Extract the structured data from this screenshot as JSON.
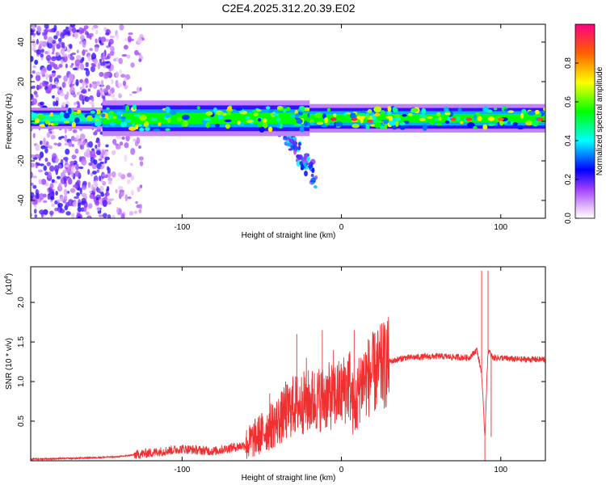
{
  "page": {
    "title": "C2E4.2025.312.20.39.E02"
  },
  "colors": {
    "snr_line": "#ee3030",
    "axis": "#000000",
    "background": "#ffffff"
  },
  "chart_data": [
    {
      "type": "heatmap",
      "title": "C2E4.2025.312.20.39.E02",
      "xlabel": "Height of straight line (km)",
      "ylabel": "Frequency (Hz)",
      "xlim": [
        -195,
        128
      ],
      "ylim": [
        -49,
        49
      ],
      "x_ticks": [
        -100,
        0,
        100
      ],
      "x_tick_labels": [
        "-100",
        "0",
        "100"
      ],
      "y_ticks": [
        -40,
        -20,
        0,
        20,
        40
      ],
      "y_tick_labels": [
        "-40",
        "-20",
        "0",
        "20",
        "40"
      ],
      "colorbar": {
        "label": "Normalized spectral amplitude",
        "range": [
          0,
          1
        ],
        "ticks": [
          0.0,
          0.2,
          0.4,
          0.6,
          0.8
        ],
        "tick_labels": [
          "0.0",
          "0.2",
          "0.4",
          "0.6",
          "0.8"
        ]
      },
      "band": {
        "center_hz": 1.5,
        "segments": [
          {
            "x_start": -195,
            "x_end": -150,
            "half_width_hz": 3,
            "amplitude": 0.45
          },
          {
            "x_start": -150,
            "x_end": -20,
            "half_width_hz": 5,
            "amplitude": 0.55
          },
          {
            "x_start": -20,
            "x_end": 128,
            "half_width_hz": 4,
            "amplitude": 0.55
          }
        ],
        "peaks": [
          {
            "x": -5,
            "freq": 1,
            "amplitude": 0.95
          },
          {
            "x": 8,
            "freq": 1,
            "amplitude": 0.95
          },
          {
            "x": 18,
            "freq": 0,
            "amplitude": 0.9
          },
          {
            "x": 70,
            "freq": 1,
            "amplitude": 0.9
          },
          {
            "x": 80,
            "freq": 1,
            "amplitude": 0.9
          },
          {
            "x": 100,
            "freq": 1,
            "amplitude": 0.85
          },
          {
            "x": 125,
            "freq": 1,
            "amplitude": 0.9
          }
        ],
        "scatter_regions": [
          {
            "x_start": -195,
            "x_end": -145,
            "freq_min": -49,
            "freq_max": 49,
            "density": "high",
            "amplitude": 0.12
          },
          {
            "x_start": -145,
            "x_end": -125,
            "freq_min": -49,
            "freq_max": 49,
            "density": "low",
            "amplitude": 0.08
          }
        ],
        "descending_streak": {
          "x_start": -40,
          "x_end": -15,
          "freq_start": 0,
          "freq_end": -30,
          "amplitude": 0.2
        }
      }
    },
    {
      "type": "line",
      "xlabel": "Height of straight line (km)",
      "ylabel": "SNR (10 * v/v)",
      "y_scale_label": "(x10",
      "y_scale_exponent": "4",
      "xlim": [
        -195,
        128
      ],
      "ylim": [
        0,
        2.45
      ],
      "x_ticks": [
        -100,
        0,
        100
      ],
      "x_tick_labels": [
        "-100",
        "0",
        "100"
      ],
      "y_ticks": [
        0.5,
        1.0,
        1.5,
        2.0
      ],
      "y_tick_labels": [
        "0.5",
        "1.0",
        "1.5",
        "2.0"
      ],
      "series": [
        {
          "name": "SNR",
          "x": [
            -195,
            -170,
            -140,
            -120,
            -100,
            -80,
            -60,
            -50,
            -40,
            -30,
            -20,
            -10,
            0,
            5,
            8,
            12,
            20,
            30,
            40,
            60,
            80,
            85,
            88,
            90,
            92,
            95,
            100,
            110,
            128
          ],
          "y": [
            0.02,
            0.03,
            0.05,
            0.1,
            0.15,
            0.12,
            0.2,
            0.35,
            0.5,
            0.7,
            0.75,
            0.8,
            0.85,
            1.0,
            0.6,
            1.0,
            1.1,
            1.25,
            1.3,
            1.32,
            1.3,
            1.4,
            1.1,
            0.3,
            1.4,
            1.3,
            1.3,
            1.28,
            1.28
          ],
          "spikes": [
            {
              "x": -45,
              "y": 0.85
            },
            {
              "x": -35,
              "y": 1.0
            },
            {
              "x": -28,
              "y": 1.6
            },
            {
              "x": -22,
              "y": 1.3
            },
            {
              "x": -12,
              "y": 1.65
            },
            {
              "x": -5,
              "y": 1.4
            },
            {
              "x": 8,
              "y": 1.65
            },
            {
              "x": 10,
              "y": 0.4
            },
            {
              "x": 88,
              "y": 2.4
            },
            {
              "x": 90,
              "y": 0.0
            },
            {
              "x": 92,
              "y": 2.4
            },
            {
              "x": 94,
              "y": 0.3
            }
          ]
        }
      ]
    }
  ]
}
